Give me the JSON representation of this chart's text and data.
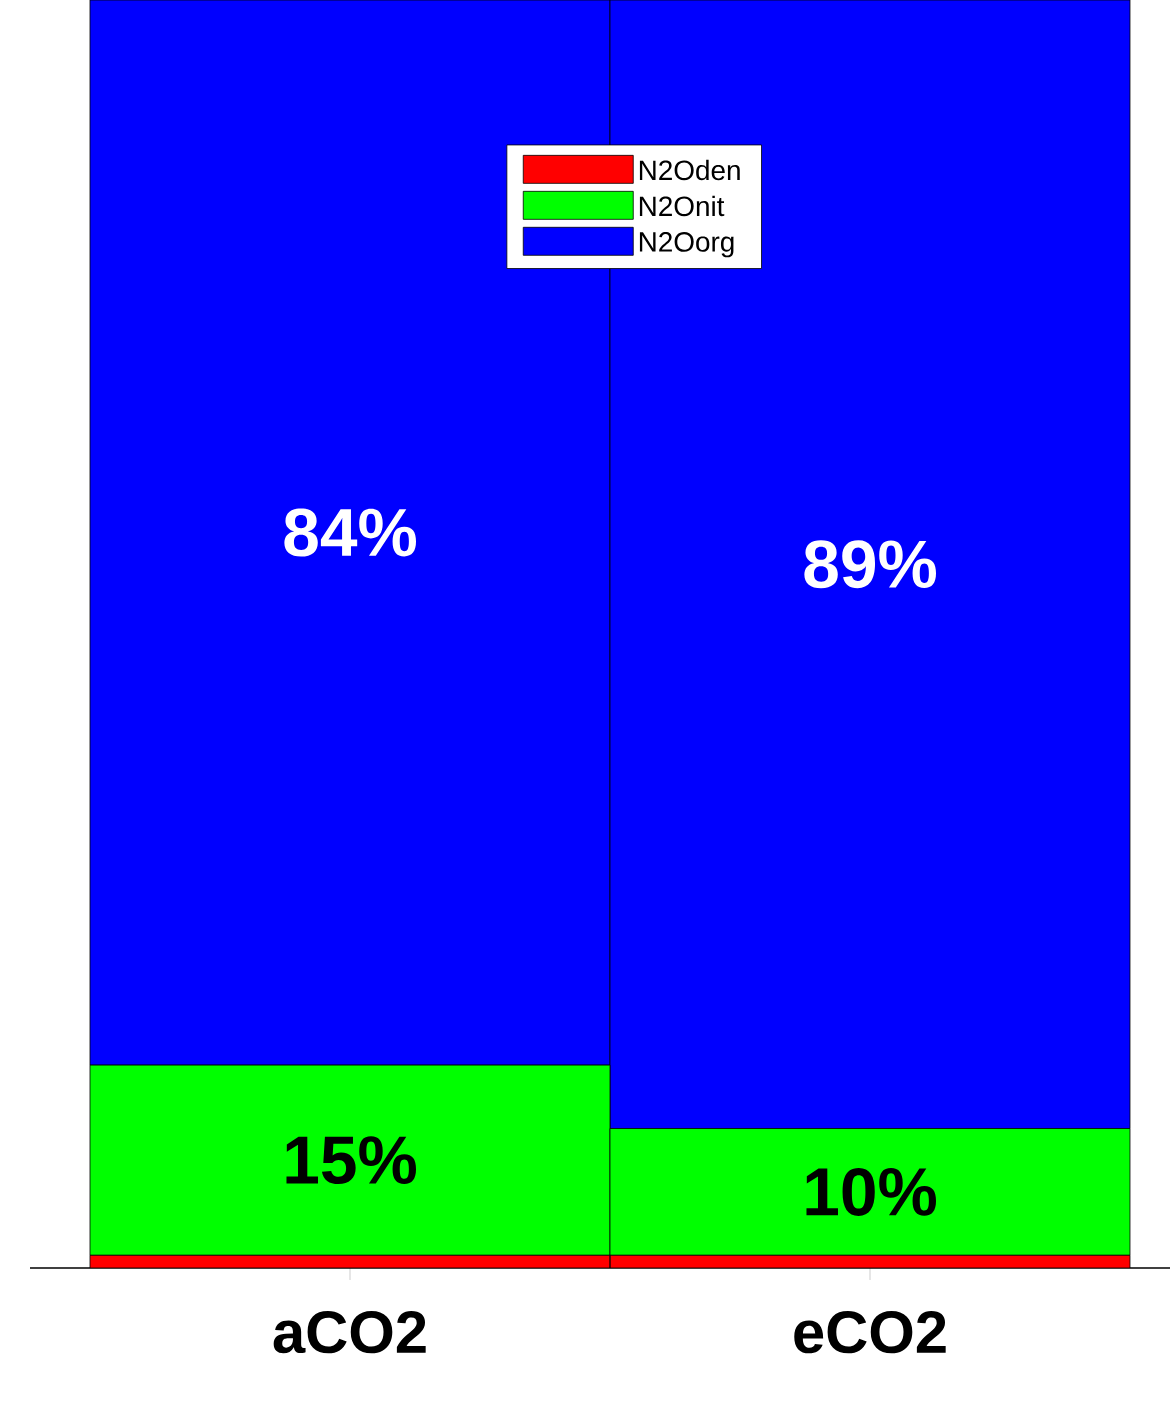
{
  "chart_data": {
    "type": "bar",
    "stacked": true,
    "categories": [
      "aCO2",
      "eCO2"
    ],
    "legend": "top",
    "series": [
      {
        "name": "N2Oden",
        "color": "#ff0000",
        "values": [
          1,
          1
        ],
        "value_labels": [
          null,
          null
        ]
      },
      {
        "name": "N2Onit",
        "color": "#00ff00",
        "values": [
          15,
          10
        ],
        "value_labels": [
          "15%",
          "10%"
        ]
      },
      {
        "name": "N2Oorg",
        "color": "#0000ff",
        "values": [
          84,
          89
        ],
        "value_labels": [
          "84%",
          "89%"
        ]
      }
    ]
  }
}
